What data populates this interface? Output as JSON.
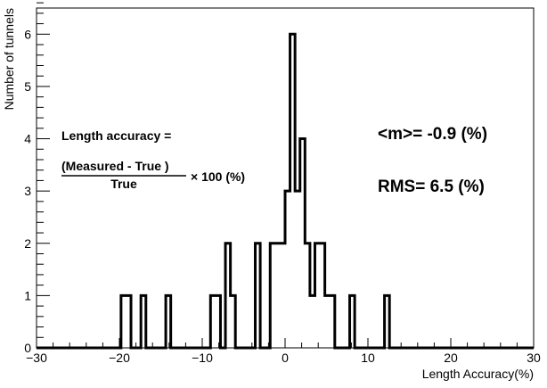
{
  "chart_data": {
    "type": "bar",
    "title": "",
    "xlabel": "Length Accuracy(%)",
    "ylabel": "Number of tunnels",
    "xlim": [
      -30,
      30
    ],
    "ylim": [
      0,
      6.5
    ],
    "bin_width": 0.6,
    "x_ticks": [
      -30,
      -20,
      -10,
      0,
      10,
      20,
      30
    ],
    "y_ticks": [
      0,
      1,
      2,
      3,
      4,
      5,
      6
    ],
    "grid": false,
    "bins": [
      {
        "x": -20.1,
        "value": 1
      },
      {
        "x": -19.2,
        "value": 1
      },
      {
        "x": -17.4,
        "value": 1
      },
      {
        "x": -14.4,
        "value": 1
      },
      {
        "x": -9.0,
        "value": 1
      },
      {
        "x": -8.4,
        "value": 1
      },
      {
        "x": -7.2,
        "value": 2
      },
      {
        "x": -6.6,
        "value": 1
      },
      {
        "x": -3.6,
        "value": 2
      },
      {
        "x": -1.8,
        "value": 2
      },
      {
        "x": -1.2,
        "value": 2
      },
      {
        "x": -0.6,
        "value": 2
      },
      {
        "x": 0.0,
        "value": 3
      },
      {
        "x": 0.6,
        "value": 6
      },
      {
        "x": 1.2,
        "value": 3
      },
      {
        "x": 1.8,
        "value": 4
      },
      {
        "x": 2.4,
        "value": 2
      },
      {
        "x": 3.0,
        "value": 1
      },
      {
        "x": 3.6,
        "value": 2
      },
      {
        "x": 4.2,
        "value": 2
      },
      {
        "x": 4.8,
        "value": 1
      },
      {
        "x": 5.4,
        "value": 1
      },
      {
        "x": 7.8,
        "value": 1
      },
      {
        "x": 12.0,
        "value": 1
      }
    ],
    "annotations": {
      "formula_label": "Length accuracy =",
      "formula_numerator": "(Measured - True )",
      "formula_denominator": "True",
      "formula_factor": "× 100 (%)",
      "mean_text": "<m>= -0.9 (%)",
      "rms_text": "RMS= 6.5 (%)"
    }
  }
}
